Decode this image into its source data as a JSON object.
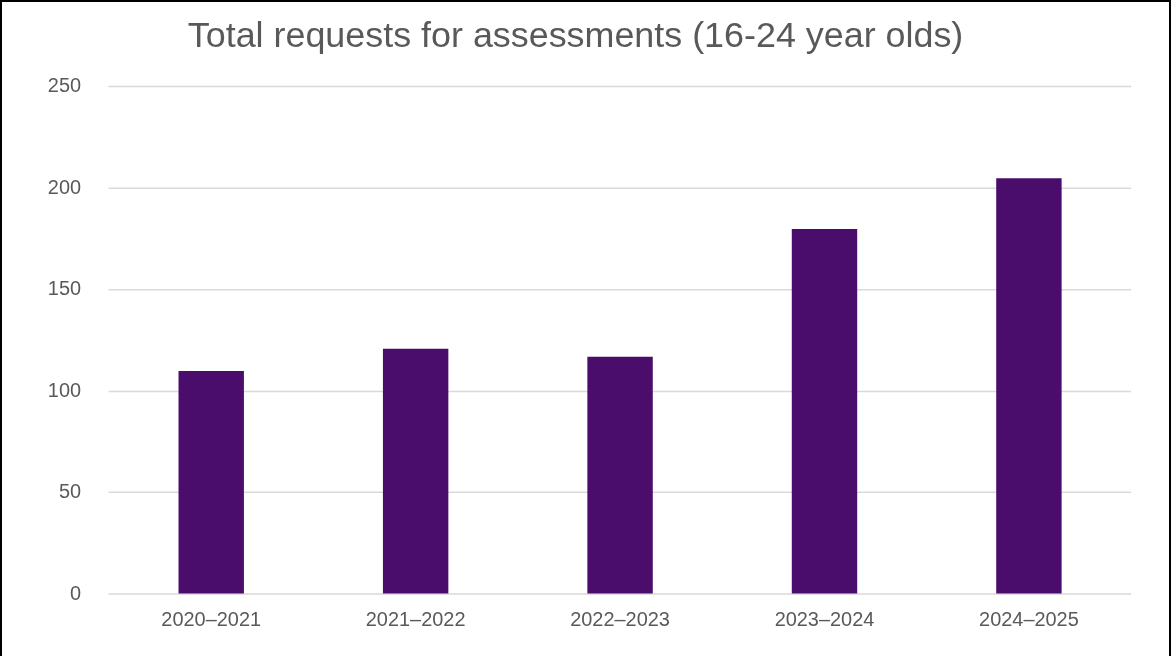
{
  "chart_data": {
    "type": "bar",
    "title": "Total requests for assessments (16-24 year olds)",
    "categories": [
      "2020–2021",
      "2021–2022",
      "2022–2023",
      "2023–2024",
      "2024–2025"
    ],
    "values": [
      110,
      121,
      117,
      180,
      205
    ],
    "color": "#4a0d6b",
    "ylim": [
      0,
      250
    ],
    "yticks": [
      0,
      50,
      100,
      150,
      200,
      250
    ],
    "grid": "y"
  }
}
